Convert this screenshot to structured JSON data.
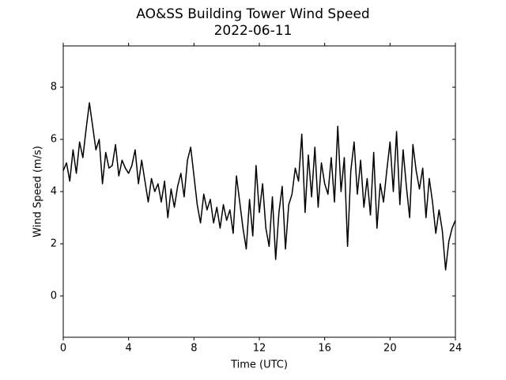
{
  "chart_data": {
    "type": "line",
    "title": "AO&SS Building Tower Wind Speed",
    "subtitle": "2022-06-11",
    "x_label": "Time (UTC)",
    "y_label": "Wind Speed (m/s)",
    "color": "#000000",
    "x": [
      0,
      0.2,
      0.4,
      0.6,
      0.8,
      1,
      1.2,
      1.4,
      1.6,
      1.8,
      2,
      2.2,
      2.4,
      2.6,
      2.8,
      3,
      3.2,
      3.4,
      3.6,
      3.8,
      4,
      4.2,
      4.4,
      4.6,
      4.8,
      5,
      5.2,
      5.4,
      5.6,
      5.8,
      6,
      6.2,
      6.4,
      6.6,
      6.8,
      7,
      7.2,
      7.4,
      7.6,
      7.8,
      8,
      8.2,
      8.4,
      8.6,
      8.8,
      9,
      9.2,
      9.4,
      9.6,
      9.8,
      10,
      10.2,
      10.4,
      10.6,
      10.8,
      11,
      11.2,
      11.4,
      11.6,
      11.8,
      12,
      12.2,
      12.4,
      12.6,
      12.8,
      13,
      13.2,
      13.4,
      13.6,
      13.8,
      14,
      14.2,
      14.4,
      14.6,
      14.8,
      15,
      15.2,
      15.4,
      15.6,
      15.8,
      16,
      16.2,
      16.4,
      16.6,
      16.8,
      17,
      17.2,
      17.4,
      17.6,
      17.8,
      18,
      18.2,
      18.4,
      18.6,
      18.8,
      19,
      19.2,
      19.4,
      19.6,
      19.8,
      20,
      20.2,
      20.4,
      20.6,
      20.8,
      21,
      21.2,
      21.4,
      21.6,
      21.8,
      22,
      22.2,
      22.4,
      22.6,
      22.8,
      23,
      23.2,
      23.4,
      23.6,
      23.8,
      24
    ],
    "values": [
      4.8,
      5.1,
      4.4,
      5.6,
      4.7,
      5.9,
      5.3,
      6.4,
      7.4,
      6.5,
      5.6,
      6.0,
      4.3,
      5.5,
      4.9,
      5.0,
      5.8,
      4.6,
      5.2,
      4.9,
      4.7,
      5.0,
      5.6,
      4.3,
      5.2,
      4.4,
      3.6,
      4.5,
      4.0,
      4.3,
      3.6,
      4.4,
      3.0,
      4.1,
      3.4,
      4.2,
      4.7,
      3.8,
      5.2,
      5.7,
      4.6,
      3.5,
      2.8,
      3.9,
      3.3,
      3.7,
      2.8,
      3.4,
      2.6,
      3.5,
      2.9,
      3.3,
      2.4,
      4.6,
      3.6,
      2.6,
      1.8,
      3.7,
      2.3,
      5.0,
      3.2,
      4.3,
      2.6,
      1.9,
      3.8,
      1.4,
      3.2,
      4.2,
      1.8,
      3.5,
      3.9,
      4.9,
      4.4,
      6.2,
      3.2,
      5.4,
      3.8,
      5.7,
      3.4,
      5.1,
      4.3,
      3.9,
      5.3,
      3.6,
      6.5,
      4.0,
      5.3,
      1.9,
      4.8,
      5.9,
      3.9,
      5.2,
      3.4,
      4.5,
      3.1,
      5.5,
      2.6,
      4.3,
      3.6,
      4.8,
      5.9,
      4.0,
      6.3,
      3.5,
      5.6,
      4.2,
      3.0,
      5.8,
      4.8,
      4.1,
      4.9,
      3.0,
      4.5,
      3.6,
      2.4,
      3.3,
      2.5,
      1.0,
      2.1,
      2.6,
      2.9
    ],
    "xlim": [
      0,
      24
    ],
    "xticks": [
      0,
      4,
      8,
      12,
      16,
      20,
      24
    ],
    "ylim": [
      -1.58,
      9.58
    ],
    "yticks": [
      0,
      2,
      4,
      6,
      8
    ]
  }
}
